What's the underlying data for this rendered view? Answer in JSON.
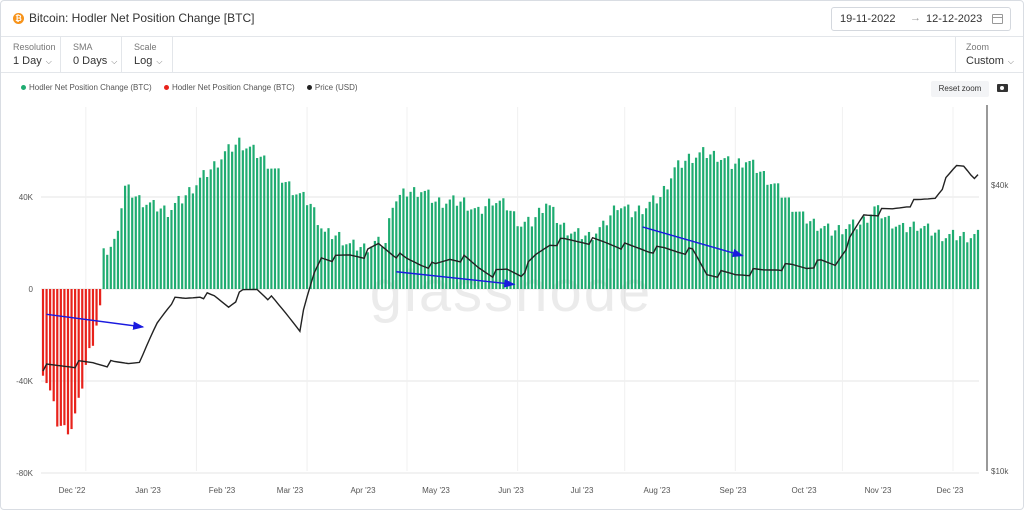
{
  "header": {
    "coin_icon": "bitcoin-icon",
    "title": "Bitcoin: Hodler Net Position Change [BTC]",
    "date_start": "19-11-2022",
    "date_arrow": "→",
    "date_end": "12-12-2023"
  },
  "controls": {
    "resolution_label": "Resolution",
    "resolution_value": "1 Day",
    "sma_label": "SMA",
    "sma_value": "0 Days",
    "scale_label": "Scale",
    "scale_value": "Log",
    "zoom_label": "Zoom",
    "zoom_value": "Custom"
  },
  "toolbar": {
    "reset_zoom": "Reset zoom",
    "camera_icon": "camera-icon"
  },
  "colors": {
    "positive": "#1fac71",
    "negative": "#e8221b",
    "price": "#222222",
    "annotation": "#1a1adf",
    "brand": "#f7931a"
  },
  "chart_data": {
    "type": "bar",
    "watermark": "glassnode",
    "legend": {
      "placement": "top-left",
      "entries": [
        {
          "label": "Hodler Net Position Change (BTC)",
          "color": "#1fac71"
        },
        {
          "label": "Hodler Net Position Change (BTC)",
          "color": "#e8221b"
        },
        {
          "label": "Price (USD)",
          "color": "#222222"
        }
      ]
    },
    "left_axis": {
      "ticks": [
        40000,
        0,
        -40000,
        -80000
      ],
      "tick_labels": [
        "40K",
        "0",
        "-40K",
        "-80K"
      ],
      "range": [
        -80000,
        68000
      ]
    },
    "right_axis": {
      "scale": "log",
      "ticks": [
        40000,
        10000
      ],
      "tick_labels": [
        "$40k",
        "$10k"
      ],
      "range": [
        10000,
        65000
      ]
    },
    "x_ticks": [
      "Dec '22",
      "Jan '23",
      "Feb '23",
      "Mar '23",
      "Apr '23",
      "May '23",
      "Jun '23",
      "Jul '23",
      "Aug '23",
      "Sep '23",
      "Oct '23",
      "Nov '23",
      "Dec '23"
    ],
    "grid": true,
    "hodler_anchors": [
      [
        0,
        -35000
      ],
      [
        2,
        -45000
      ],
      [
        4,
        -58000
      ],
      [
        6,
        -61000
      ],
      [
        8,
        -60000
      ],
      [
        10,
        -50000
      ],
      [
        12,
        -33000
      ],
      [
        14,
        -22000
      ],
      [
        16,
        -8000
      ],
      [
        17,
        15000
      ],
      [
        20,
        20000
      ],
      [
        23,
        44000
      ],
      [
        27,
        39000
      ],
      [
        31,
        36000
      ],
      [
        35,
        34000
      ],
      [
        39,
        39000
      ],
      [
        43,
        46000
      ],
      [
        47,
        52000
      ],
      [
        51,
        59000
      ],
      [
        55,
        64000
      ],
      [
        59,
        60000
      ],
      [
        63,
        55000
      ],
      [
        67,
        48000
      ],
      [
        71,
        42000
      ],
      [
        75,
        37000
      ],
      [
        79,
        24000
      ],
      [
        83,
        23000
      ],
      [
        86,
        19000
      ],
      [
        90,
        18000
      ],
      [
        93,
        20000
      ],
      [
        96,
        20000
      ],
      [
        98,
        38000
      ],
      [
        102,
        42000
      ],
      [
        106,
        43000
      ],
      [
        110,
        38000
      ],
      [
        114,
        38000
      ],
      [
        118,
        38000
      ],
      [
        122,
        33000
      ],
      [
        126,
        39000
      ],
      [
        130,
        36000
      ],
      [
        134,
        28000
      ],
      [
        137,
        29000
      ],
      [
        141,
        38000
      ],
      [
        145,
        28000
      ],
      [
        149,
        24000
      ],
      [
        153,
        23000
      ],
      [
        157,
        27000
      ],
      [
        161,
        37000
      ],
      [
        165,
        33000
      ],
      [
        169,
        36000
      ],
      [
        173,
        40000
      ],
      [
        177,
        52000
      ],
      [
        181,
        57000
      ],
      [
        185,
        59000
      ],
      [
        189,
        58000
      ],
      [
        193,
        54000
      ],
      [
        197,
        56000
      ],
      [
        201,
        51000
      ],
      [
        205,
        45000
      ],
      [
        209,
        38000
      ],
      [
        213,
        31000
      ],
      [
        217,
        28000
      ],
      [
        221,
        25000
      ],
      [
        225,
        27000
      ],
      [
        229,
        28000
      ],
      [
        233,
        35000
      ],
      [
        237,
        30000
      ],
      [
        241,
        26000
      ],
      [
        245,
        28000
      ],
      [
        249,
        25000
      ],
      [
        253,
        23000
      ]
    ],
    "price_anchors": [
      [
        0,
        16500
      ],
      [
        10,
        16800
      ],
      [
        14,
        16900
      ],
      [
        20,
        16800
      ],
      [
        24,
        16900
      ],
      [
        28,
        17300
      ],
      [
        32,
        20500
      ],
      [
        36,
        22800
      ],
      [
        40,
        23000
      ],
      [
        44,
        23500
      ],
      [
        48,
        23200
      ],
      [
        52,
        22300
      ],
      [
        56,
        23800
      ],
      [
        60,
        24200
      ],
      [
        64,
        23000
      ],
      [
        68,
        21500
      ],
      [
        72,
        20000
      ],
      [
        76,
        26000
      ],
      [
        78,
        28200
      ],
      [
        82,
        28000
      ],
      [
        86,
        28500
      ],
      [
        90,
        28500
      ],
      [
        94,
        30000
      ],
      [
        98,
        28800
      ],
      [
        102,
        27800
      ],
      [
        106,
        27300
      ],
      [
        110,
        27000
      ],
      [
        114,
        28000
      ],
      [
        118,
        28000
      ],
      [
        122,
        26800
      ],
      [
        126,
        26000
      ],
      [
        130,
        26500
      ],
      [
        134,
        26000
      ],
      [
        138,
        28300
      ],
      [
        142,
        30100
      ],
      [
        146,
        30500
      ],
      [
        150,
        30500
      ],
      [
        154,
        30500
      ],
      [
        158,
        30200
      ],
      [
        162,
        29800
      ],
      [
        166,
        29500
      ],
      [
        170,
        29200
      ],
      [
        174,
        29300
      ],
      [
        178,
        29100
      ],
      [
        182,
        29000
      ],
      [
        186,
        26000
      ],
      [
        190,
        26000
      ],
      [
        194,
        25900
      ],
      [
        198,
        26200
      ],
      [
        202,
        26400
      ],
      [
        206,
        26800
      ],
      [
        210,
        27000
      ],
      [
        214,
        26900
      ],
      [
        218,
        27500
      ],
      [
        222,
        27200
      ],
      [
        226,
        30500
      ],
      [
        230,
        34600
      ],
      [
        234,
        35000
      ],
      [
        238,
        35500
      ],
      [
        242,
        36400
      ],
      [
        246,
        37000
      ],
      [
        250,
        37800
      ],
      [
        254,
        41800
      ],
      [
        256,
        43800
      ],
      [
        258,
        44000
      ],
      [
        260,
        42500
      ],
      [
        262,
        41400
      ]
    ],
    "annotations": [
      {
        "type": "arrow",
        "color": "#1a1adf",
        "from": {
          "day": 1,
          "value": -11000
        },
        "to": {
          "day": 28,
          "value": -16500
        }
      },
      {
        "type": "arrow",
        "color": "#1a1adf",
        "from": {
          "day": 99,
          "value": 7500
        },
        "to": {
          "day": 132,
          "value": 2000
        }
      },
      {
        "type": "arrow",
        "color": "#1a1adf",
        "from": {
          "day": 168,
          "value": 27000
        },
        "to": {
          "day": 196,
          "value": 14500
        }
      }
    ]
  }
}
